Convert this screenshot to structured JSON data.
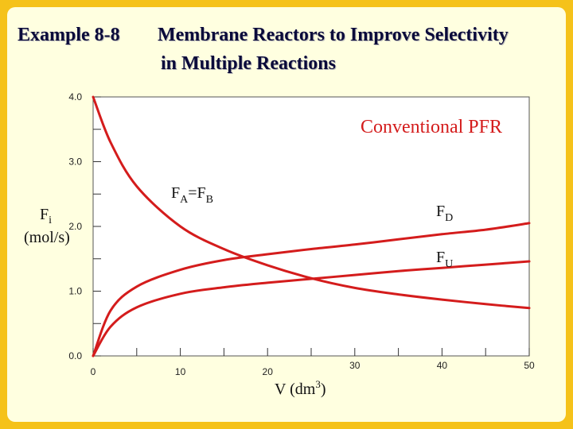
{
  "header": {
    "example": "Example 8-8",
    "title_line1": "Membrane Reactors to Improve Selectivity",
    "title_line2": "in Multiple Reactions"
  },
  "colors": {
    "background": "#f5c21a",
    "slide": "#ffffe0",
    "curve": "#d41c1c",
    "annotation": "#d41c1c"
  },
  "chart_data": {
    "type": "line",
    "title": "",
    "annotation": "Conventional PFR",
    "xlabel": "V (dm3)",
    "ylabel": "Fi (mol/s)",
    "xlim": [
      0,
      50
    ],
    "ylim": [
      0,
      4
    ],
    "grid": false,
    "x_ticks": [
      0,
      10,
      20,
      30,
      40,
      50
    ],
    "y_ticks": [
      "0.0",
      "1.0",
      "2.0",
      "3.0",
      "4.0"
    ],
    "series": [
      {
        "name": "FA=FB",
        "x": [
          0,
          2,
          5,
          10,
          15,
          20,
          25,
          30,
          35,
          40,
          45,
          50
        ],
        "values": [
          4.0,
          3.3,
          2.62,
          2.0,
          1.65,
          1.4,
          1.2,
          1.05,
          0.95,
          0.87,
          0.8,
          0.74
        ]
      },
      {
        "name": "FD",
        "x": [
          0,
          2,
          5,
          10,
          15,
          20,
          25,
          30,
          35,
          40,
          45,
          50
        ],
        "values": [
          0.0,
          0.7,
          1.07,
          1.33,
          1.48,
          1.57,
          1.65,
          1.72,
          1.8,
          1.88,
          1.95,
          2.05
        ]
      },
      {
        "name": "FU",
        "x": [
          0,
          2,
          5,
          10,
          15,
          20,
          25,
          30,
          35,
          40,
          45,
          50
        ],
        "values": [
          0.0,
          0.45,
          0.75,
          0.96,
          1.06,
          1.13,
          1.19,
          1.25,
          1.31,
          1.36,
          1.41,
          1.46
        ]
      }
    ],
    "series_labels": {
      "fab": {
        "main": "F",
        "sub1": "A",
        "mid": "=F",
        "sub2": "B"
      },
      "fd": {
        "main": "F",
        "sub": "D"
      },
      "fu": {
        "main": "F",
        "sub": "U"
      }
    },
    "ylabel_parts": {
      "main": "F",
      "sub": "i",
      "unit": "(mol/s)"
    },
    "xlabel_parts": {
      "main": "V (dm",
      "sup": "3",
      "close": ")"
    }
  }
}
